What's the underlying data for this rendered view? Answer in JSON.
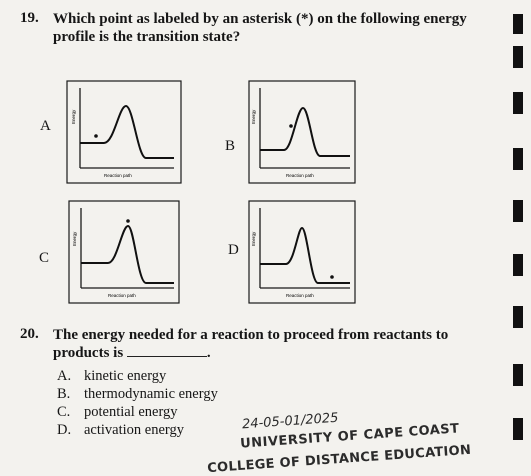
{
  "q19": {
    "number": "19.",
    "line1": "Which point as labeled by an asterisk (*) on the following energy",
    "line2": "profile is the transition state?"
  },
  "graph": {
    "ylabel": "Energy",
    "xlabel": "Reaction path"
  },
  "panels": [
    {
      "letter": "A",
      "point": "left of peak, on reactant level"
    },
    {
      "letter": "B",
      "point": "on rising slope"
    },
    {
      "letter": "C",
      "point": "at peak"
    },
    {
      "letter": "D",
      "point": "on product level"
    }
  ],
  "q20": {
    "number": "20.",
    "line1": "The energy needed for a reaction to proceed from reactants to",
    "line2_prefix": "products is",
    "line2_suffix": "."
  },
  "options": [
    {
      "letter": "A.",
      "text": "kinetic energy"
    },
    {
      "letter": "B.",
      "text": "thermodynamic energy"
    },
    {
      "letter": "C.",
      "text": "potential energy"
    },
    {
      "letter": "D.",
      "text": "activation energy"
    }
  ],
  "stamp": {
    "date": "24-05-01/2025",
    "line1": "UNIVERSITY OF CAPE COAST",
    "line2": "COLLEGE OF DISTANCE EDUCATION"
  }
}
